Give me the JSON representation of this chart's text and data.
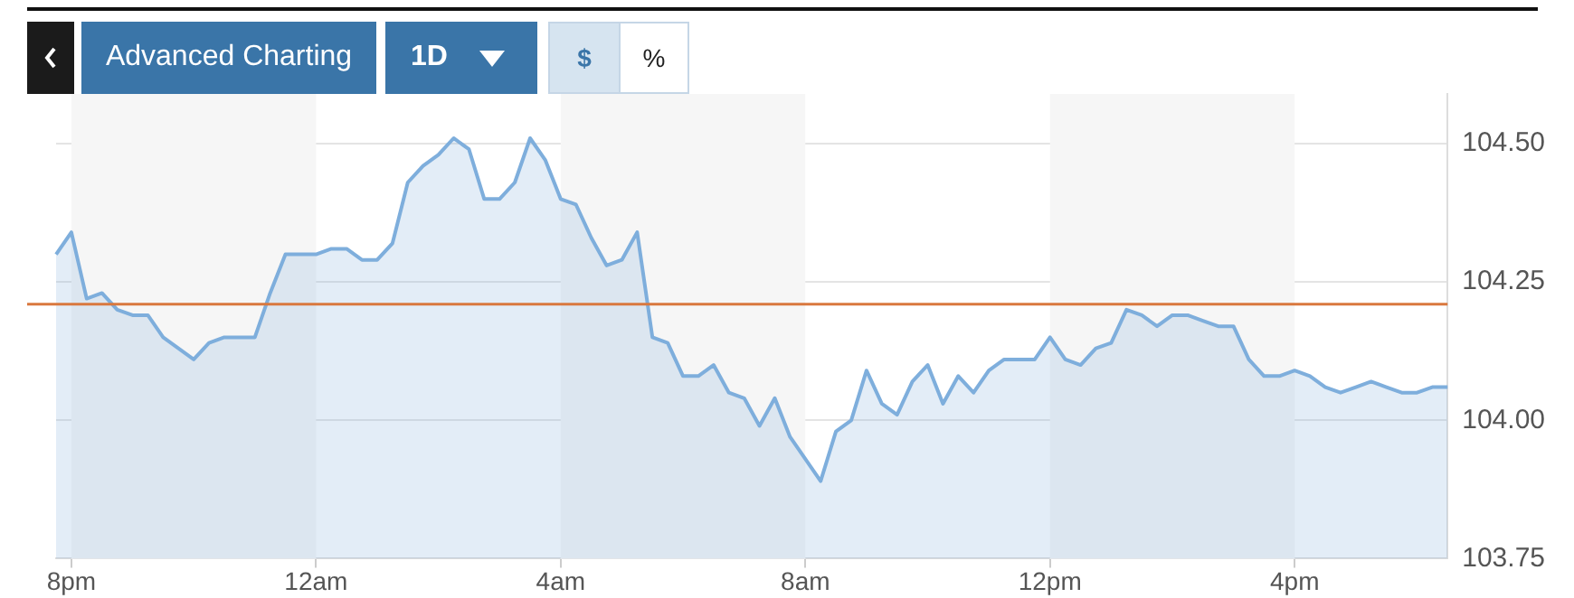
{
  "chart_data": {
    "type": "area",
    "categories": [
      null,
      "8pm",
      null,
      null,
      null,
      null,
      null,
      null,
      null,
      null,
      null,
      null,
      null,
      null,
      null,
      null,
      null,
      "12am",
      null,
      null,
      null,
      null,
      null,
      null,
      null,
      null,
      null,
      null,
      null,
      null,
      null,
      null,
      null,
      "4am",
      null,
      null,
      null,
      null,
      null,
      null,
      null,
      null,
      null,
      null,
      null,
      null,
      null,
      null,
      null,
      "8am",
      null,
      null,
      null,
      null,
      null,
      null,
      null,
      null,
      null,
      null,
      null,
      null,
      null,
      null,
      null,
      "12pm",
      null,
      null,
      null,
      null,
      null,
      null,
      null,
      null,
      null,
      null,
      null,
      null,
      null,
      null,
      null,
      "4pm",
      null,
      null,
      null,
      null,
      null,
      null,
      null,
      null,
      null,
      null
    ],
    "series": [
      {
        "color": "#7eaedc",
        "values": [
          104.3,
          104.34,
          104.22,
          104.23,
          104.2,
          104.19,
          104.19,
          104.15,
          104.13,
          104.11,
          104.14,
          104.15,
          104.15,
          104.15,
          104.23,
          104.3,
          104.3,
          104.3,
          104.31,
          104.31,
          104.29,
          104.29,
          104.32,
          104.43,
          104.46,
          104.48,
          104.51,
          104.49,
          104.4,
          104.4,
          104.43,
          104.51,
          104.47,
          104.4,
          104.39,
          104.33,
          104.28,
          104.29,
          104.34,
          104.15,
          104.14,
          104.08,
          104.08,
          104.1,
          104.05,
          104.04,
          103.99,
          104.04,
          103.97,
          103.93,
          103.89,
          103.98,
          104.0,
          104.09,
          104.03,
          104.01,
          104.07,
          104.1,
          104.03,
          104.08,
          104.05,
          104.09,
          104.11,
          104.11,
          104.11,
          104.15,
          104.11,
          104.1,
          104.13,
          104.14,
          104.2,
          104.19,
          104.17,
          104.19,
          104.19,
          104.18,
          104.17,
          104.17,
          104.11,
          104.08,
          104.08,
          104.09,
          104.08,
          104.06,
          104.05,
          104.06,
          104.07,
          104.06,
          104.05,
          104.05,
          104.06,
          104.06
        ]
      }
    ],
    "ylim": [
      103.75,
      104.59
    ],
    "yticks": [
      {
        "value": 103.75,
        "label": "103.75"
      },
      {
        "value": 104,
        "label": "104.00"
      },
      {
        "value": 104.25,
        "label": "104.25"
      },
      {
        "value": 104.5,
        "label": "104.50"
      }
    ],
    "grid": "y",
    "legend": false,
    "ref_lines": [
      {
        "axis": "y",
        "value": 104.21,
        "color": "#d9783e"
      }
    ],
    "bands": [
      {
        "axis": "x",
        "from": "8pm",
        "to": "12am",
        "color": "#f6f6f6"
      },
      {
        "axis": "x",
        "from": "4am",
        "to": "8am",
        "color": "#f6f6f6"
      },
      {
        "axis": "x",
        "from": "12pm",
        "to": "4pm",
        "color": "#f6f6f6"
      }
    ],
    "annotations": [
      "Advanced Charting",
      "1D",
      "$",
      "%"
    ]
  }
}
